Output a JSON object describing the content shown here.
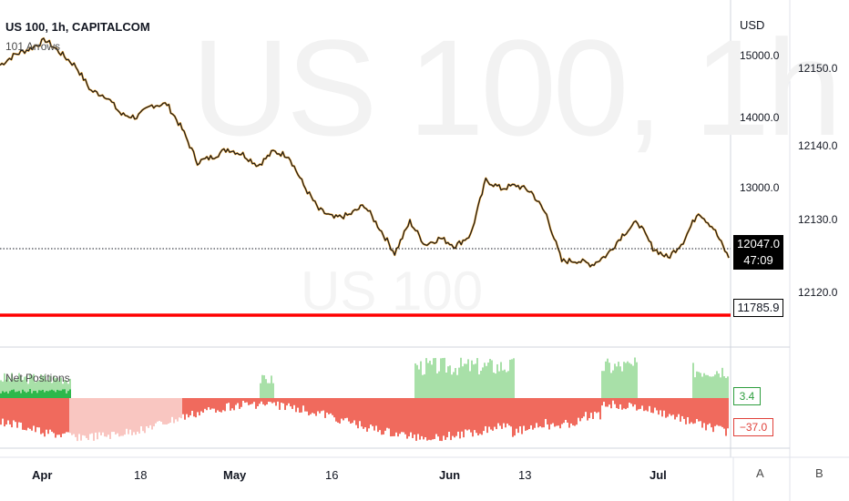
{
  "header": {
    "title": "US 100, 1h, CAPITALCOM",
    "indicator_name": "101 Arrows",
    "net_positions_label": "Net Positions",
    "watermark": "US 100, 1h",
    "watermark_sub": "US 100"
  },
  "price_scale": {
    "currency": "USD",
    "left_ticks": [
      "15000.0",
      "14000.0",
      "13000.0"
    ],
    "right_ticks": [
      "12150.0",
      "12140.0",
      "12130.0",
      "12120.0"
    ],
    "current_price": "12047.0",
    "countdown": "47:09",
    "line_price": "11785.9",
    "long_value": "3.4",
    "short_value": "−37.0"
  },
  "time_axis": {
    "labels": [
      "Apr",
      "18",
      "May",
      "16",
      "Jun",
      "13",
      "Jul"
    ],
    "bold_labels": [
      "Apr",
      "May",
      "Jun",
      "Jul"
    ],
    "scale_buttons": [
      "A",
      "B"
    ]
  },
  "colors": {
    "candle": "#131722",
    "wick_accent": "#f5a623",
    "support_line": "#ff0000",
    "long_fill": "#a8e0a8",
    "long_bright": "#2db84b",
    "short_fill": "#f06a5d",
    "short_light": "#f9c6c1",
    "price_box_bg": "#000000"
  },
  "chart_data": {
    "type": "line",
    "series": [
      {
        "values": [
          14870,
          15030,
          15120,
          15250,
          15050,
          14850,
          14480,
          14400,
          14120,
          14080,
          14260,
          14280,
          13900,
          13400,
          13480,
          13600,
          13520,
          13350,
          13560,
          13500,
          13050,
          12680,
          12550,
          12600,
          12750,
          12400,
          12020,
          12500,
          12150,
          12250,
          12130,
          12300,
          13130,
          13000,
          13050,
          12950,
          12600,
          11900,
          11910,
          11850,
          12000,
          12300,
          12500,
          12100,
          11950,
          12200,
          12650,
          12400,
          11950
        ]
      }
    ],
    "x_labels": [
      "Apr",
      "18",
      "May",
      "16",
      "Jun",
      "13",
      "Jul"
    ],
    "support_level": 11785.9,
    "last_price": 12047.0,
    "net_positions": {
      "long_last": 3.4,
      "short_last": -37.0
    }
  }
}
